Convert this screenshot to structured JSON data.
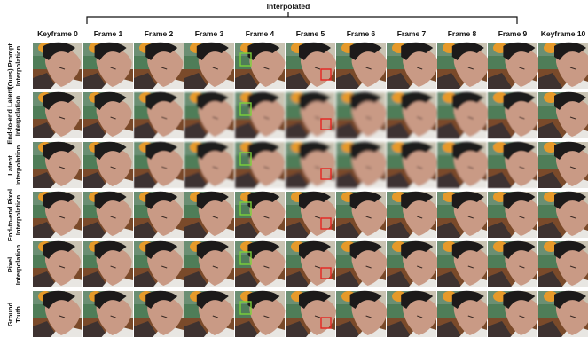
{
  "figure": {
    "top_label": "Interpolated",
    "columns": [
      "Keyframe 0",
      "Frame 1",
      "Frame 2",
      "Frame 3",
      "Frame 4",
      "Frame 5",
      "Frame 6",
      "Frame 7",
      "Frame 8",
      "Frame 9",
      "Keyframe 10"
    ],
    "rows": [
      {
        "line1": "(Ours) Prompt",
        "line2": "Interpolation",
        "blur": [
          0,
          0,
          0,
          0,
          0,
          0,
          0,
          0,
          0,
          0,
          0
        ]
      },
      {
        "line1": "End-to-end Latent",
        "line2": "Interpolation",
        "blur": [
          0,
          0.3,
          0.6,
          1,
          1.3,
          1.5,
          1.5,
          1.3,
          1,
          0.6,
          0
        ]
      },
      {
        "line1": "Latent",
        "line2": "Interpolation",
        "blur": [
          0,
          0.3,
          0.6,
          1,
          1.3,
          1.5,
          1.5,
          1.3,
          1,
          0.6,
          0
        ]
      },
      {
        "line1": "End-to-end Pixel",
        "line2": "Interpolation",
        "blur": [
          0,
          0,
          0,
          0,
          0,
          0,
          0,
          0,
          0,
          0,
          0
        ]
      },
      {
        "line1": "Pixel",
        "line2": "Interpolation",
        "blur": [
          0,
          0,
          0,
          0,
          0,
          0,
          0,
          0,
          0,
          0,
          0
        ]
      },
      {
        "line1": "Ground",
        "line2": "Truth",
        "blur": [
          0,
          0,
          0,
          0,
          0,
          0,
          0,
          0,
          0,
          0,
          0
        ]
      }
    ],
    "highlight_colors": {
      "green_box": "#7cd23a",
      "red_box": "#e52420"
    }
  }
}
